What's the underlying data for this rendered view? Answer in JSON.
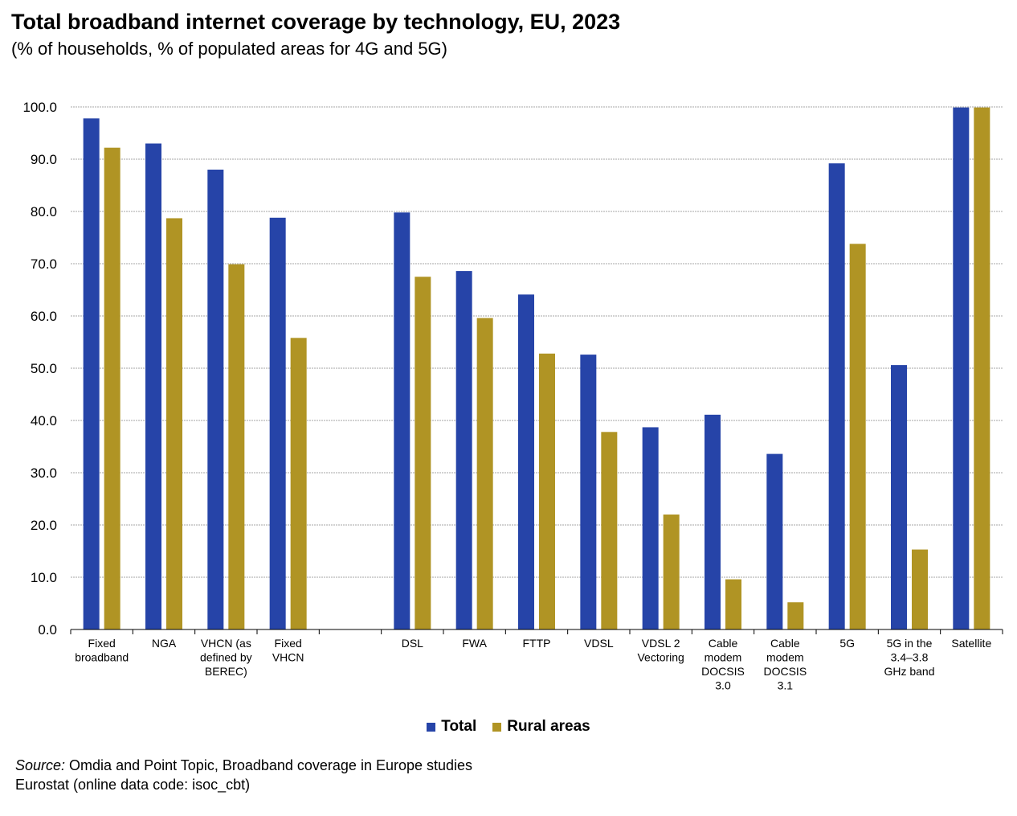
{
  "title": "Total broadband internet coverage by technology, EU, 2023",
  "subtitle": "(% of households, % of populated areas for 4G and 5G)",
  "legend": {
    "total": "Total",
    "rural": "Rural areas"
  },
  "colors": {
    "total": "#2644a8",
    "rural": "#b09424",
    "grid": "#a6a6a6"
  },
  "source": {
    "label": "Source:",
    "text": " Omdia and Point Topic, Broadband coverage in Europe studies",
    "line2": "Eurostat (online data code: isoc_cbt)"
  },
  "chart_data": {
    "type": "bar",
    "categories": [
      "Fixed broadband",
      "NGA",
      "VHCN (as defined by BEREC)",
      "Fixed VHCN",
      "",
      "DSL",
      "FWA",
      "FTTP",
      "VDSL",
      "VDSL 2 Vectoring",
      "Cable modem DOCSIS 3.0",
      "Cable modem DOCSIS 3.1",
      "5G",
      "5G in the 3.4–3.8 GHz band",
      "Satellite"
    ],
    "category_lines": [
      [
        "Fixed",
        "broadband"
      ],
      [
        "NGA"
      ],
      [
        "VHCN (as",
        "defined by",
        "BEREC)"
      ],
      [
        "Fixed",
        "VHCN"
      ],
      [],
      [
        "DSL"
      ],
      [
        "FWA"
      ],
      [
        "FTTP"
      ],
      [
        "VDSL"
      ],
      [
        "VDSL 2",
        "Vectoring"
      ],
      [
        "Cable",
        "modem",
        "DOCSIS",
        "3.0"
      ],
      [
        "Cable",
        "modem",
        "DOCSIS",
        "3.1"
      ],
      [
        "5G"
      ],
      [
        "5G in the",
        "3.4–3.8",
        "GHz band"
      ],
      [
        "Satellite"
      ]
    ],
    "series": [
      {
        "name": "Total",
        "values": [
          97.8,
          93.0,
          88.0,
          78.8,
          null,
          79.8,
          68.6,
          64.1,
          52.6,
          38.7,
          41.1,
          33.6,
          89.2,
          50.6,
          99.9
        ]
      },
      {
        "name": "Rural areas",
        "values": [
          92.2,
          78.7,
          69.9,
          55.8,
          null,
          67.5,
          59.6,
          52.8,
          37.8,
          22.0,
          9.6,
          5.2,
          73.8,
          15.3,
          99.9
        ]
      }
    ],
    "yticks": [
      "0.0",
      "10.0",
      "20.0",
      "30.0",
      "40.0",
      "50.0",
      "60.0",
      "70.0",
      "80.0",
      "90.0",
      "100.0"
    ],
    "ylim": [
      0,
      100
    ],
    "grid": true,
    "legend_position": "bottom"
  }
}
